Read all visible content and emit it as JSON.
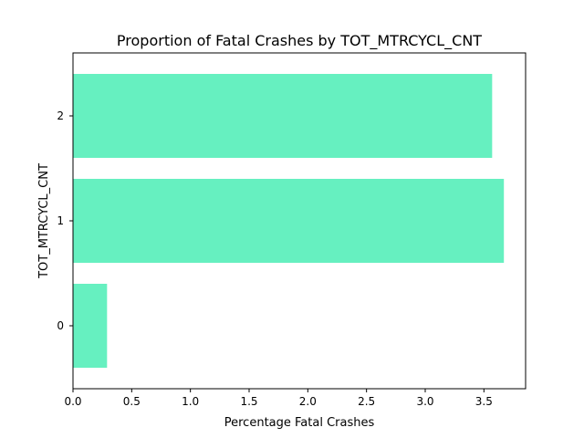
{
  "chart_data": {
    "type": "bar",
    "orientation": "horizontal",
    "title": "Proportion of Fatal Crashes by TOT_MTRCYCL_CNT",
    "xlabel": "Percentage Fatal Crashes",
    "ylabel": "TOT_MTRCYCL_CNT",
    "categories": [
      "0",
      "1",
      "2"
    ],
    "values": [
      0.29,
      3.67,
      3.57
    ],
    "xlim": [
      0,
      3.855
    ],
    "xticks": [
      0.0,
      0.5,
      1.0,
      1.5,
      2.0,
      2.5,
      3.0,
      3.5
    ],
    "xtick_labels": [
      "0.0",
      "0.5",
      "1.0",
      "1.5",
      "2.0",
      "2.5",
      "3.0",
      "3.5"
    ],
    "bar_color": "#66f0c0",
    "grid": false,
    "legend": "none"
  }
}
